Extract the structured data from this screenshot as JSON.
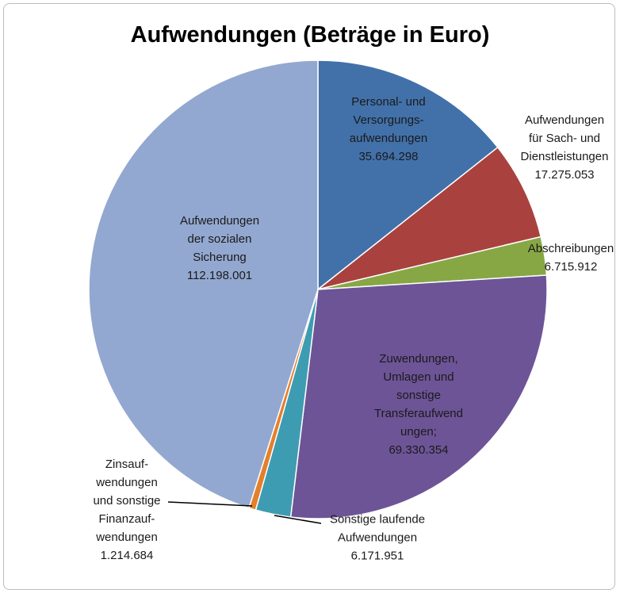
{
  "chart_data": {
    "type": "pie",
    "title": "Aufwendungen (Beträge in Euro)",
    "categories": [
      "Personal- und\nVersorgungs-\naufwendungen",
      "Aufwendungen\nfür Sach- und\nDienstleistungen",
      "Abschreibungen",
      "Zuwendungen,\nUmlagen und\nsonstige\nTransferaufwend\nungen;",
      "Sonstige laufende\nAufwendungen",
      "Zinsauf-\nwendungen\nund sonstige\nFinanzauf-\nwendungen",
      "Aufwendungen\nder sozialen\nSicherung"
    ],
    "values": [
      35694298,
      17275053,
      6715912,
      69330354,
      6171951,
      1214684,
      112198001
    ],
    "value_labels": [
      "35.694.298",
      "17.275.053",
      "6.715.912",
      "69.330.354",
      "6.171.951",
      "1.214.684",
      "112.198.001"
    ],
    "colors": [
      "#4271aa",
      "#a9423f",
      "#87a745",
      "#6d5497",
      "#3e9cb2",
      "#e3802c",
      "#93a8d0"
    ]
  }
}
